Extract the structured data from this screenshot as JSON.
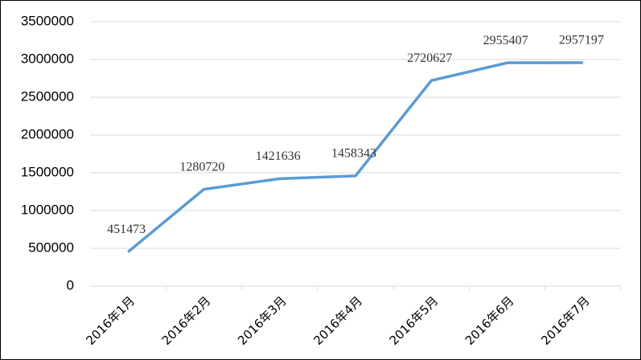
{
  "chart_data": {
    "type": "line",
    "categories": [
      "2016年1月",
      "2016年2月",
      "2016年3月",
      "2016年4月",
      "2016年5月",
      "2016年6月",
      "2016年7月"
    ],
    "values": [
      451473,
      1280720,
      1421636,
      1458343,
      2720627,
      2955407,
      2957197
    ],
    "color": "#5b9bd5",
    "ylim": [
      0,
      3500000
    ],
    "yticks": [
      0,
      500000,
      1000000,
      1500000,
      2000000,
      2500000,
      3000000,
      3500000
    ],
    "grid": true
  }
}
